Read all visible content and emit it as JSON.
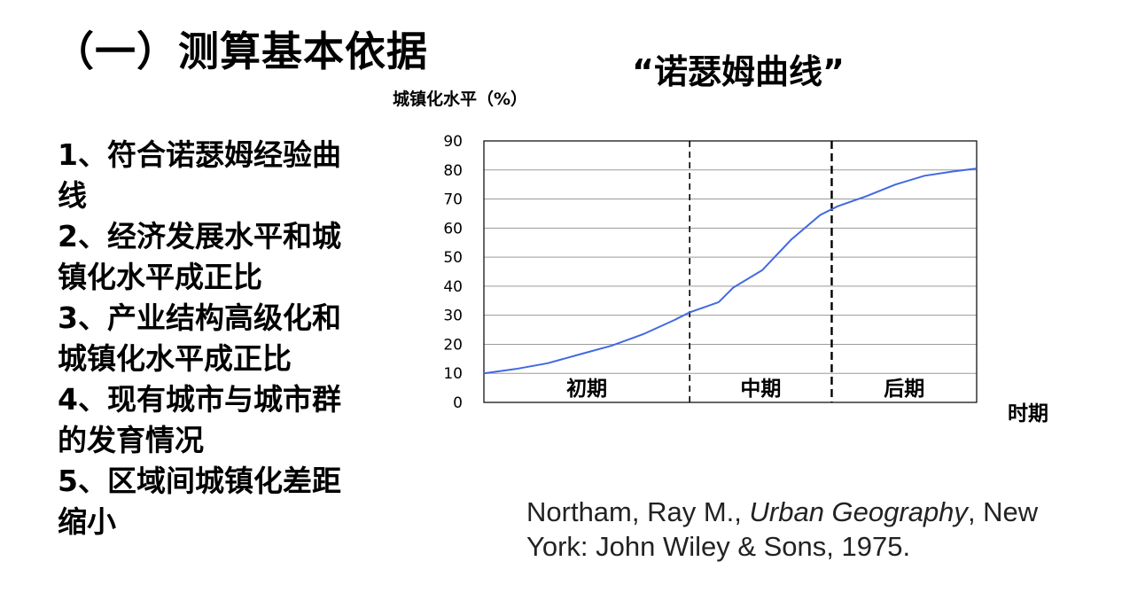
{
  "slide": {
    "title": "（一）测算基本依据",
    "chart_heading": "“诺瑟姆曲线”",
    "criteria": [
      "1、符合诺瑟姆经验曲线",
      "2、经济发展水平和城镇化水平成正比",
      "3、产业结构高级化和城镇化水平成正比",
      "4、现有城市与城市群的发育情况",
      "5、区域间城镇化差距缩小"
    ],
    "citation": {
      "author": "Northam, Ray M., ",
      "book": "Urban Geography",
      "rest": ", New York: John Wiley & Sons, 1975."
    }
  },
  "chart_data": {
    "type": "line",
    "ylabel": "城镇化水平（%）",
    "xlabel": "时期",
    "ylim": [
      0,
      90
    ],
    "yticks": [
      0,
      10,
      20,
      30,
      40,
      50,
      60,
      70,
      80,
      90
    ],
    "grid": true,
    "line_color": "#4169e1",
    "xlim": [
      0,
      17
    ],
    "x": [
      0,
      1.1,
      2.2,
      3.3,
      4.4,
      5.5,
      6.6,
      7.1,
      8.1,
      8.6,
      9.6,
      10.6,
      11.6,
      12.2,
      13.2,
      14.2,
      15.2,
      16.2,
      17
    ],
    "y": [
      10,
      11.5,
      13.5,
      16.5,
      19.5,
      23.5,
      28.5,
      31,
      34.5,
      39.5,
      45.5,
      56,
      64.5,
      67.5,
      71,
      75,
      78,
      79.5,
      80.5
    ],
    "phase_boundaries": [
      7.1,
      12.0
    ],
    "phases": [
      "初期",
      "中期",
      "后期"
    ]
  }
}
